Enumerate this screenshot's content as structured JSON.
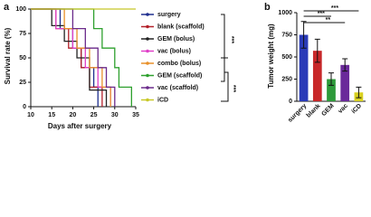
{
  "chart_data": [
    {
      "type": "step",
      "panel_label": "a",
      "x_label": "Days after surgery",
      "y_label": "Survival rate (%)",
      "xlim": [
        10,
        35
      ],
      "xticks": [
        10,
        15,
        20,
        25,
        30,
        35
      ],
      "ylim": [
        0,
        100
      ],
      "yticks": [
        0,
        25,
        50,
        75,
        100
      ],
      "series": [
        {
          "name": "surgery",
          "color": "#1f2f8f",
          "x": [
            10,
            17,
            20,
            22,
            25,
            26
          ],
          "values": [
            100,
            80,
            60,
            40,
            20,
            0
          ]
        },
        {
          "name": "blank (scaffold)",
          "color": "#b3202a",
          "x": [
            10,
            16,
            19,
            22,
            24,
            27
          ],
          "values": [
            100,
            80,
            60,
            40,
            20,
            0
          ]
        },
        {
          "name": "GEM (bolus)",
          "color": "#222222",
          "x": [
            10,
            15,
            18,
            21,
            24,
            28
          ],
          "values": [
            100,
            83,
            67,
            50,
            17,
            0
          ]
        },
        {
          "name": "vac (bolus)",
          "color": "#e040c8",
          "x": [
            10,
            16,
            20,
            23,
            26,
            29
          ],
          "values": [
            100,
            80,
            60,
            40,
            20,
            0
          ]
        },
        {
          "name": "combo (bolus)",
          "color": "#e8902a",
          "x": [
            10,
            18,
            21,
            24,
            27,
            29
          ],
          "values": [
            100,
            80,
            60,
            40,
            20,
            0
          ]
        },
        {
          "name": "GEM (scaffold)",
          "color": "#2ea02e",
          "x": [
            10,
            25,
            27,
            30,
            31,
            34
          ],
          "values": [
            100,
            80,
            60,
            40,
            20,
            0
          ]
        },
        {
          "name": "vac (scaffold)",
          "color": "#6a2a8a",
          "x": [
            10,
            20,
            23,
            26,
            28,
            30
          ],
          "values": [
            100,
            80,
            60,
            40,
            20,
            0
          ]
        },
        {
          "name": "iCD",
          "color": "#c8c828",
          "x": [
            10,
            35
          ],
          "values": [
            100,
            100
          ]
        }
      ],
      "annotations": [
        "***",
        "***"
      ]
    },
    {
      "type": "bar",
      "panel_label": "b",
      "y_label": "Tumor weight (mg)",
      "categories": [
        "surgery",
        "blank",
        "GEM",
        "vac",
        "iCD"
      ],
      "values": [
        750,
        570,
        250,
        410,
        100
      ],
      "errors": [
        150,
        130,
        70,
        70,
        60
      ],
      "colors": [
        "#2a3bb8",
        "#c8282a",
        "#2e9a3a",
        "#6a2a9a",
        "#d8d020"
      ],
      "ylim": [
        0,
        1000
      ],
      "yticks": [
        0,
        250,
        500,
        750,
        1000
      ],
      "annotations": [
        "***",
        "**",
        "***"
      ]
    }
  ]
}
